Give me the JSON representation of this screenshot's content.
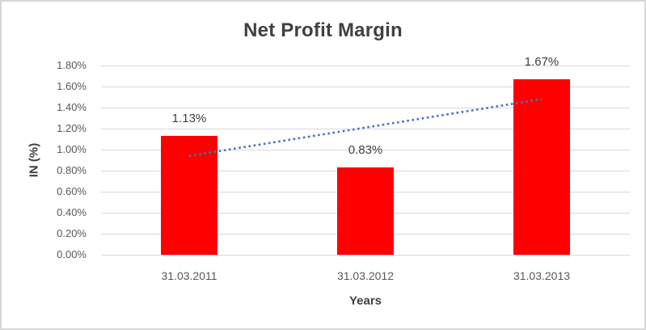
{
  "chart_data": {
    "type": "bar",
    "title": "Net Profit Margin",
    "xlabel": "Years",
    "ylabel": "IN (%)",
    "categories": [
      "31.03.2011",
      "31.03.2012",
      "31.03.2013"
    ],
    "values": [
      1.13,
      0.83,
      1.67
    ],
    "data_labels": [
      "1.13%",
      "0.83%",
      "1.67%"
    ],
    "ylim": [
      0,
      1.8
    ],
    "y_tick_step": 0.2,
    "y_tick_labels": [
      "0.00%",
      "0.20%",
      "0.40%",
      "0.60%",
      "0.80%",
      "1.00%",
      "1.20%",
      "1.40%",
      "1.60%",
      "1.80%"
    ],
    "grid": true,
    "legend_position": "none",
    "trendline": {
      "type": "linear",
      "style": "dotted",
      "start_value": 0.94,
      "end_value": 1.48
    },
    "colors": {
      "bar": "#ff0000",
      "trendline": "#4472c4",
      "gridline": "#d9d9d9",
      "title_text": "#404040",
      "axis_title_text": "#404040",
      "tick_text": "#595959",
      "frame_border": "#d6d6d6"
    }
  }
}
